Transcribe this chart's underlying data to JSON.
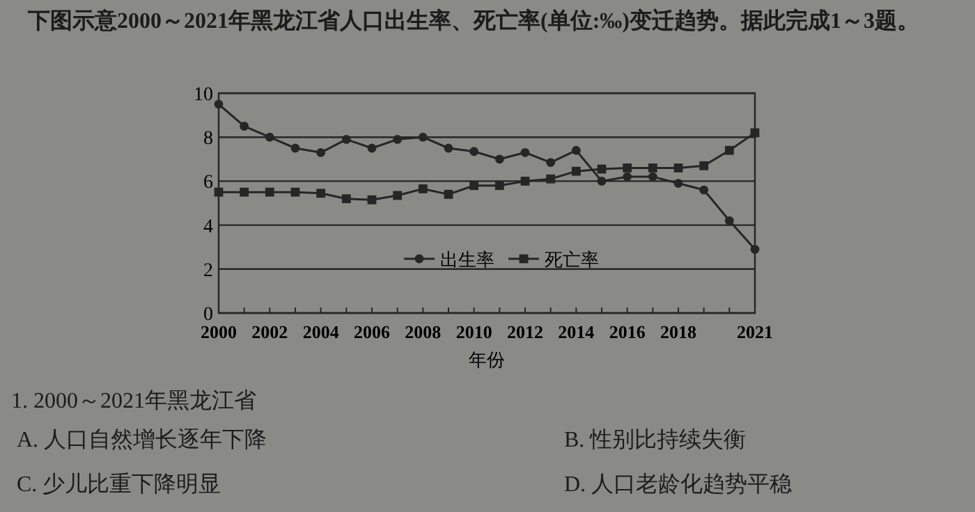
{
  "chart_data": {
    "type": "line",
    "title": "下图示意2000～2021年黑龙江省人口出生率、死亡率(单位:‰)变迁趋势。据此完成1～3题。",
    "xlabel": "年份",
    "x": [
      2000,
      2001,
      2002,
      2003,
      2004,
      2005,
      2006,
      2007,
      2008,
      2009,
      2010,
      2011,
      2012,
      2013,
      2014,
      2015,
      2016,
      2017,
      2018,
      2019,
      2020,
      2021
    ],
    "series": [
      {
        "name": "出生率",
        "color": "#262626",
        "marker": "circle",
        "values": [
          9.5,
          8.5,
          8.0,
          7.5,
          7.3,
          7.9,
          7.5,
          7.9,
          8.0,
          7.5,
          7.35,
          7.0,
          7.3,
          6.85,
          7.4,
          6.0,
          6.2,
          6.2,
          5.9,
          5.6,
          4.2,
          2.9
        ]
      },
      {
        "name": "死亡率",
        "color": "#262626",
        "marker": "square",
        "values": [
          5.5,
          5.5,
          5.5,
          5.5,
          5.45,
          5.2,
          5.15,
          5.35,
          5.65,
          5.4,
          5.8,
          5.8,
          6.0,
          6.1,
          6.45,
          6.55,
          6.6,
          6.6,
          6.6,
          6.7,
          7.4,
          8.2
        ]
      }
    ],
    "xlim": [
      2000,
      2021
    ],
    "xticks": [
      2000,
      {
        "value": 2001,
        "label": null
      },
      2002,
      {
        "value": 2003,
        "label": null
      },
      2004,
      {
        "value": 2005,
        "label": null
      },
      2006,
      {
        "value": 2007,
        "label": null
      },
      2008,
      {
        "value": 2009,
        "label": null
      },
      2010,
      {
        "value": 2011,
        "label": null
      },
      2012,
      {
        "value": 2013,
        "label": null
      },
      2014,
      {
        "value": 2015,
        "label": null
      },
      2016,
      {
        "value": 2017,
        "label": null
      },
      2018,
      {
        "value": 2019,
        "label": null
      },
      {
        "value": 2020,
        "label": null
      },
      2021
    ],
    "ylim": [
      0,
      10
    ],
    "yticks": [
      0,
      2,
      4,
      6,
      8,
      10
    ],
    "grid": "y",
    "legend": "center",
    "annotations": [
      "1. 2000～2021年黑龙江省",
      "A. 人口自然增长逐年下降",
      "B. 性别比持续失衡",
      "C. 少儿比重下降明显",
      "D. 人口老龄化趋势平稳"
    ]
  }
}
